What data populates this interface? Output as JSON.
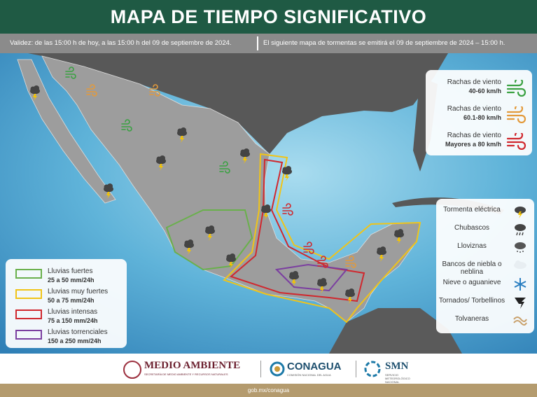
{
  "header": {
    "title": "MAPA DE TIEMPO SIGNIFICATIVO"
  },
  "validity": {
    "left": "Validez: de las 15:00  h de hoy, a las 15:00  h del 09 de septiembre de 2024.",
    "right": "El siguiente mapa de tormentas se emitirá el 09 de septiembre de 2024 – 15:00 h."
  },
  "wind_legend": [
    {
      "label": "Rachas de viento",
      "range": "40-60 km/h",
      "color": "#3aa142"
    },
    {
      "label": "Rachas de viento",
      "range": "60.1-80 km/h",
      "color": "#e39a3b"
    },
    {
      "label": "Rachas de viento",
      "range": "Mayores a 80 km/h",
      "color": "#d0282e"
    }
  ],
  "phenomena_legend": [
    "Tormenta eléctrica",
    "Chubascos",
    "Lloviznas",
    "Bancos de niebla o neblina",
    "Nieve o aguanieve",
    "Tornados/ Torbellinos",
    "Tolvaneras"
  ],
  "rain_legend": [
    {
      "label": "Lluvias fuertes",
      "range": "25 a 50 mm/24h",
      "color": "#6ab04c"
    },
    {
      "label": "Lluvias muy fuertes",
      "range": "50 a 75 mm/24h",
      "color": "#f0c419"
    },
    {
      "label": "Lluvias intensas",
      "range": "75 a 150 mm/24h",
      "color": "#d0282e"
    },
    {
      "label": "Lluvias torrenciales",
      "range": "150 a 250 mm/24h",
      "color": "#7b3fa0"
    }
  ],
  "footer": {
    "medio_ambiente": "MEDIO AMBIENTE",
    "semarnat": "SECRETARÍA DE MEDIO AMBIENTE Y RECURSOS NATURALES",
    "conagua": "CONAGUA",
    "conagua_sub": "COMISIÓN NACIONAL DEL AGUA",
    "smn": "SMN",
    "smn_sub": "SERVICIO METEOROLÓGICO NACIONAL",
    "url": "gob.mx/conagua"
  }
}
